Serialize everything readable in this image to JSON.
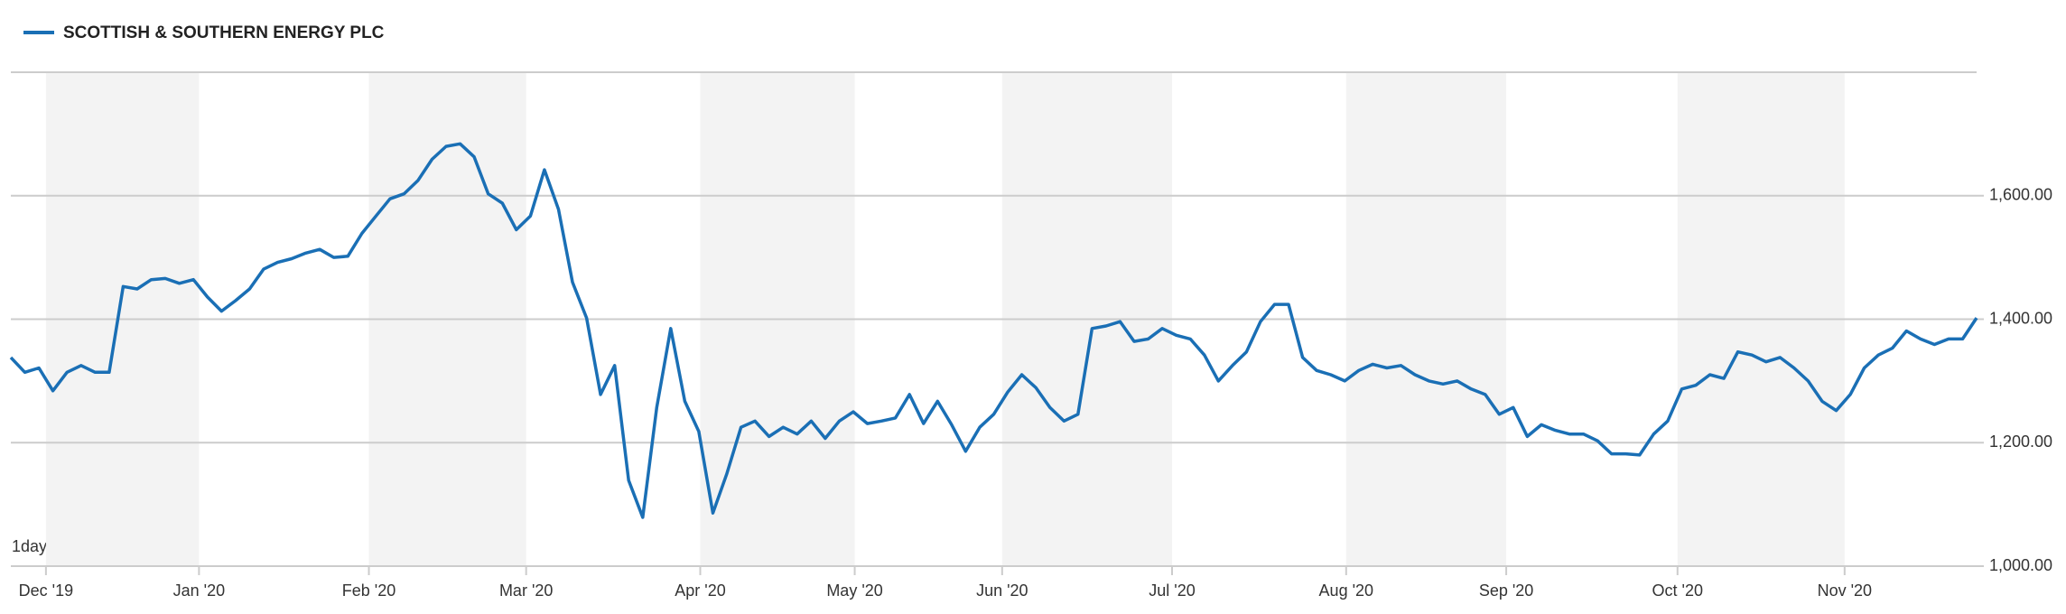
{
  "chart_data": {
    "type": "line",
    "interval": "1day",
    "series": [
      {
        "name": "SCOTTISH & SOUTHERN ENERGY PLC",
        "color": "#1a6fb5",
        "values": [
          1338,
          1314,
          1321,
          1284,
          1314,
          1325,
          1314,
          1314,
          1453,
          1449,
          1464,
          1466,
          1458,
          1464,
          1436,
          1413,
          1430,
          1449,
          1481,
          1492,
          1498,
          1507,
          1513,
          1500,
          1502,
          1539,
          1567,
          1595,
          1603,
          1625,
          1659,
          1680,
          1684,
          1663,
          1603,
          1588,
          1545,
          1567,
          1642,
          1578,
          1460,
          1402,
          1278,
          1325,
          1139,
          1079,
          1257,
          1385,
          1267,
          1218,
          1086,
          1150,
          1225,
          1235,
          1210,
          1225,
          1214,
          1235,
          1207,
          1235,
          1250,
          1231,
          1235,
          1240,
          1278,
          1231,
          1267,
          1229,
          1186,
          1225,
          1246,
          1282,
          1310,
          1289,
          1257,
          1235,
          1246,
          1385,
          1389,
          1396,
          1364,
          1368,
          1385,
          1374,
          1368,
          1342,
          1300,
          1325,
          1347,
          1396,
          1424,
          1424,
          1338,
          1317,
          1310,
          1300,
          1317,
          1327,
          1321,
          1325,
          1310,
          1300,
          1295,
          1300,
          1287,
          1278,
          1246,
          1257,
          1210,
          1229,
          1220,
          1214,
          1214,
          1203,
          1182,
          1182,
          1180,
          1214,
          1235,
          1287,
          1293,
          1310,
          1304,
          1347,
          1342,
          1331,
          1338,
          1321,
          1300,
          1267,
          1252,
          1278,
          1321,
          1342,
          1353,
          1381,
          1368,
          1359,
          1368,
          1368,
          1402
        ]
      }
    ],
    "xlim": [
      0,
      140
    ],
    "xticks": [
      {
        "value": 2.5,
        "label": "Dec '19"
      },
      {
        "value": 13.4,
        "label": "Jan '20"
      },
      {
        "value": 25.5,
        "label": "Feb '20"
      },
      {
        "value": 36.7,
        "label": "Mar '20"
      },
      {
        "value": 49.1,
        "label": "Apr '20"
      },
      {
        "value": 60.1,
        "label": "May '20"
      },
      {
        "value": 70.6,
        "label": "Jun '20"
      },
      {
        "value": 82.7,
        "label": "Jul '20"
      },
      {
        "value": 95.1,
        "label": "Aug '20"
      },
      {
        "value": 106.5,
        "label": "Sep '20"
      },
      {
        "value": 118.7,
        "label": "Oct '20"
      },
      {
        "value": 130.6,
        "label": "Nov '20"
      }
    ],
    "ylim": [
      1000,
      1800
    ],
    "yticks": [
      {
        "value": 1000,
        "label": "1,000.00"
      },
      {
        "value": 1200,
        "label": "1,200.00"
      },
      {
        "value": 1400,
        "label": "1,400.00"
      },
      {
        "value": 1600,
        "label": "1,600.00"
      }
    ],
    "grid": true
  }
}
